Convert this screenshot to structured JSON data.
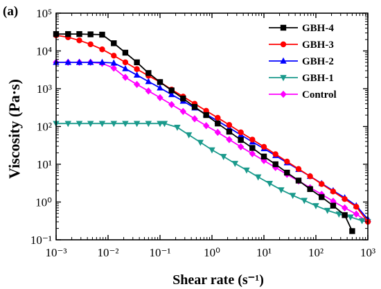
{
  "panel_label": "(a)",
  "chart_data": {
    "type": "line",
    "xlabel": "Shear rate (s⁻¹)",
    "ylabel": "Viscosity (Pa·s)",
    "xscale": "log",
    "yscale": "log",
    "xlim": [
      0.001,
      1000
    ],
    "ylim": [
      0.1,
      100000
    ],
    "x_tick_labels": [
      "10⁻³",
      "10⁻²",
      "10⁻¹",
      "10⁰",
      "10¹",
      "10²",
      "10³"
    ],
    "y_tick_labels": [
      "10⁻¹",
      "10⁰",
      "10¹",
      "10²",
      "10³",
      "10⁴",
      "10⁵"
    ],
    "legend_position": "top-right",
    "grid": false,
    "series": [
      {
        "name": "GBH-4",
        "color": "#000000",
        "marker": "square",
        "x": [
          0.001,
          0.0017,
          0.0028,
          0.0046,
          0.0077,
          0.0129,
          0.0215,
          0.0359,
          0.0599,
          0.1,
          0.167,
          0.278,
          0.464,
          0.774,
          1.29,
          2.15,
          3.59,
          5.99,
          10,
          16.7,
          27.8,
          46.4,
          77.4,
          129,
          215,
          359,
          500
        ],
        "y": [
          28000,
          28000,
          28000,
          27500,
          27000,
          16000,
          9000,
          5000,
          2600,
          1500,
          900,
          550,
          330,
          200,
          120,
          73,
          44,
          27,
          16,
          10,
          6,
          3.7,
          2.2,
          1.35,
          0.8,
          0.45,
          0.17
        ]
      },
      {
        "name": "GBH-3",
        "color": "#ff0000",
        "marker": "circle",
        "x": [
          0.001,
          0.0017,
          0.0028,
          0.0046,
          0.0077,
          0.0129,
          0.0215,
          0.0359,
          0.0599,
          0.1,
          0.167,
          0.278,
          0.464,
          0.774,
          1.29,
          2.15,
          3.59,
          5.99,
          10,
          16.7,
          27.8,
          46.4,
          77.4,
          129,
          215,
          359,
          599,
          1000
        ],
        "y": [
          26000,
          23000,
          19000,
          15000,
          11000,
          7500,
          5000,
          3300,
          2200,
          1500,
          950,
          620,
          400,
          260,
          170,
          110,
          70,
          45,
          29,
          18.5,
          11.8,
          7.5,
          4.8,
          3,
          1.9,
          1.2,
          0.75,
          0.3
        ]
      },
      {
        "name": "GBH-2",
        "color": "#0000ff",
        "marker": "triangle-up",
        "x": [
          0.001,
          0.0017,
          0.0028,
          0.0046,
          0.0077,
          0.0129,
          0.0215,
          0.0359,
          0.0599,
          0.1,
          0.167,
          0.278,
          0.464,
          0.774,
          1.29,
          2.15,
          3.59,
          5.99,
          10,
          16.7,
          27.8,
          46.4,
          77.4,
          129,
          215,
          359,
          599,
          1000
        ],
        "y": [
          5000,
          5000,
          5000,
          5000,
          5000,
          4800,
          3400,
          2300,
          1550,
          1050,
          700,
          470,
          310,
          210,
          140,
          92,
          60,
          39,
          26,
          17,
          11,
          7.3,
          4.8,
          3.1,
          2,
          1.3,
          0.8,
          0.35
        ]
      },
      {
        "name": "GBH-1",
        "color": "#1a9a8c",
        "marker": "triangle-down",
        "x": [
          0.001,
          0.0017,
          0.0028,
          0.0046,
          0.0077,
          0.0129,
          0.0215,
          0.0359,
          0.0599,
          0.1,
          0.122,
          0.215,
          0.359,
          0.599,
          1,
          1.67,
          2.78,
          4.64,
          7.74,
          12.9,
          21.5,
          35.9,
          59.9,
          100,
          167,
          278,
          464,
          774,
          1000
        ],
        "y": [
          120,
          120,
          120,
          120,
          120,
          120,
          120,
          120,
          120,
          120,
          120,
          95,
          60,
          38,
          24,
          16,
          10.5,
          7,
          4.6,
          3.1,
          2.1,
          1.5,
          1.1,
          0.8,
          0.6,
          0.48,
          0.4,
          0.32,
          0.3
        ]
      },
      {
        "name": "Control",
        "color": "#ff00ff",
        "marker": "diamond",
        "x": [
          0.001,
          0.0017,
          0.0028,
          0.0046,
          0.0077,
          0.0129,
          0.0215,
          0.0359,
          0.0599,
          0.1,
          0.167,
          0.278,
          0.464,
          0.774,
          1.29,
          2.15,
          3.59,
          5.99,
          10,
          16.7,
          27.8,
          46.4,
          77.4,
          129,
          215,
          359,
          599,
          1000
        ],
        "y": [
          5000,
          5000,
          5000,
          5000,
          4700,
          3500,
          2000,
          1300,
          870,
          580,
          380,
          250,
          160,
          105,
          70,
          45,
          29,
          19,
          12.5,
          8.2,
          5.4,
          3.6,
          2.4,
          1.6,
          1.05,
          0.7,
          0.48,
          0.3
        ]
      }
    ]
  }
}
